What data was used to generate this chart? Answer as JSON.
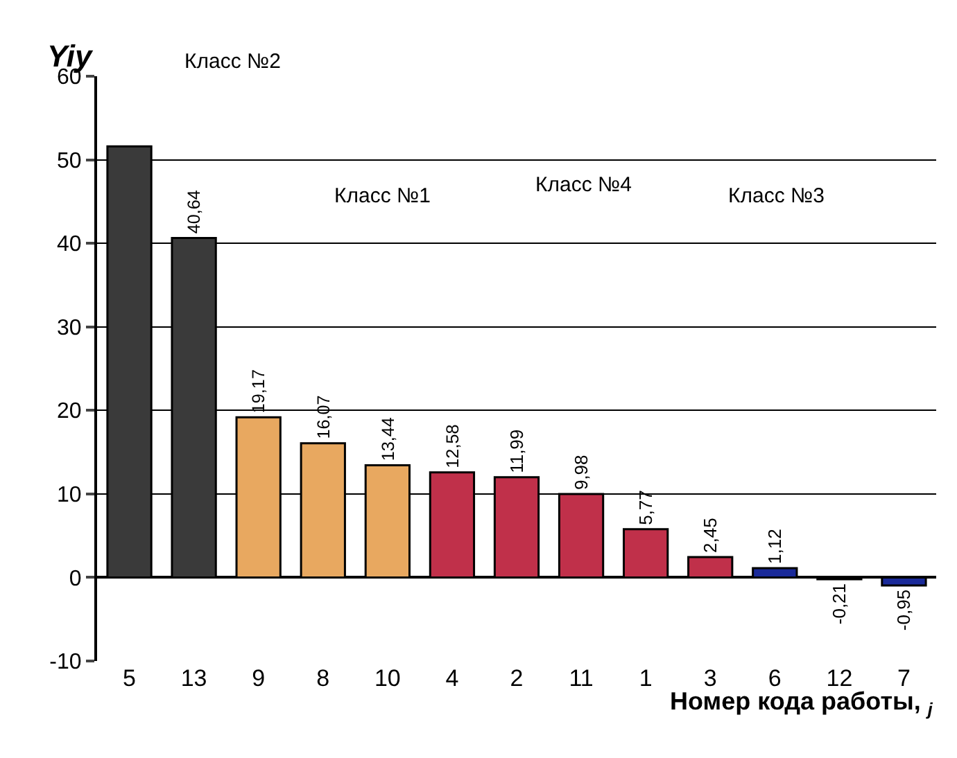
{
  "chart_data": {
    "type": "bar",
    "ylabel": "Yiy",
    "xlabel": "Номер кода работы, $_{j}$",
    "categories": [
      "5",
      "13",
      "9",
      "8",
      "10",
      "4",
      "2",
      "11",
      "1",
      "3",
      "6",
      "12",
      "7"
    ],
    "values": [
      51.6,
      40.64,
      19.17,
      16.07,
      13.44,
      12.58,
      11.99,
      9.98,
      5.77,
      2.45,
      1.12,
      -0.21,
      -0.95
    ],
    "value_labels": [
      null,
      "40,64",
      "19,17",
      "16,07",
      "13,44",
      "12,58",
      "11,99",
      "9,98",
      "5,77",
      "2,45",
      "1,12",
      "-0,21",
      "-0,95"
    ],
    "colors": [
      "#3a3a3a",
      "#3a3a3a",
      "#e8a860",
      "#e8a860",
      "#e8a860",
      "#c0304a",
      "#c0304a",
      "#c0304a",
      "#c0304a",
      "#c0304a",
      "#1a2a9a",
      "#1a2a9a",
      "#1a2a9a"
    ],
    "annotations": [
      "Класс №2",
      "Класс №1",
      "Класс №4",
      "Класс №3"
    ],
    "ylim": [
      -10,
      60
    ],
    "yticks": [
      -10,
      0,
      10,
      20,
      30,
      40,
      50,
      60
    ],
    "grid": "y",
    "legend": false
  }
}
